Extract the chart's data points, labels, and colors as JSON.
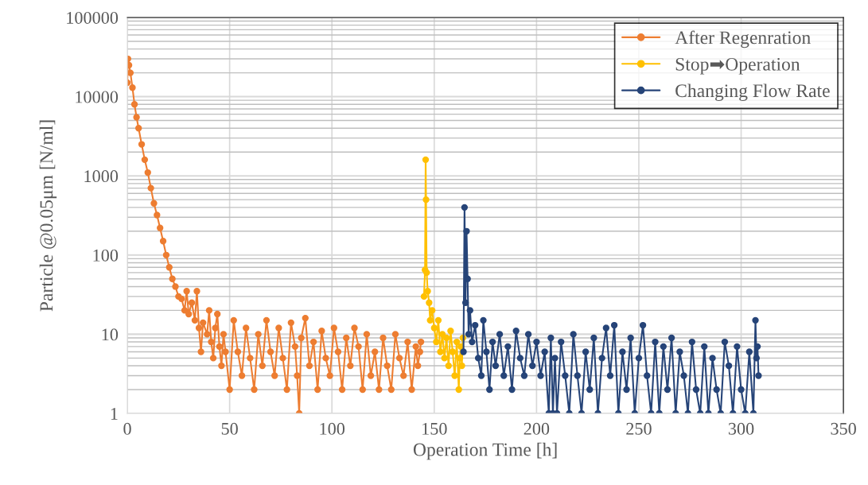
{
  "chart_data": {
    "type": "line",
    "xlabel": "Operation Time [h]",
    "ylabel": "Particle @0.05μm [N/ml]",
    "log": "y",
    "grid": true,
    "legend": "top right",
    "marker": "circle",
    "line_style": "solid",
    "xlim": [
      0,
      350
    ],
    "xticks": [
      0,
      50,
      100,
      150,
      200,
      250,
      300,
      350
    ],
    "ylim": [
      1,
      100000
    ],
    "yticks": [
      1,
      10,
      100,
      1000,
      10000,
      100000
    ],
    "series": [
      {
        "name": "After Regenration",
        "color": "#ed7d31",
        "x": [
          0,
          0.3,
          0.8,
          1.5,
          2.5,
          3.5,
          4.5,
          5.5,
          7,
          8.5,
          10,
          11.5,
          13,
          14.5,
          16,
          17.5,
          19,
          20.5,
          22,
          23.5,
          25,
          26.5,
          28,
          29,
          30,
          31.5,
          33,
          34,
          35,
          36,
          37,
          39,
          40,
          41,
          42,
          43,
          44,
          45,
          46,
          47,
          48,
          50,
          52,
          54,
          56,
          58,
          60,
          62,
          64,
          66,
          68,
          70,
          72,
          74,
          76,
          78,
          80,
          82,
          83,
          84,
          85,
          87,
          89,
          91,
          93,
          95,
          97,
          99,
          101,
          103,
          105,
          107,
          109,
          111,
          113,
          115,
          117,
          119,
          121,
          123,
          125,
          127,
          129,
          131,
          133,
          135,
          137,
          139,
          141,
          142,
          143,
          143.5
        ],
        "values": [
          15000,
          30000,
          25000,
          20000,
          13000,
          8000,
          5500,
          4000,
          2500,
          1600,
          1100,
          700,
          450,
          320,
          220,
          150,
          100,
          70,
          50,
          40,
          30,
          28,
          20,
          35,
          18,
          25,
          15,
          35,
          12,
          6,
          14,
          10,
          20,
          8,
          5,
          12,
          18,
          7,
          4,
          10,
          6,
          2,
          15,
          6,
          3,
          12,
          5,
          2,
          10,
          4,
          15,
          6,
          3,
          12,
          5,
          2,
          14,
          7,
          3,
          1,
          9,
          16,
          4,
          8,
          2,
          11,
          5,
          3,
          12,
          6,
          2,
          9,
          4,
          12,
          7,
          2,
          10,
          3,
          6,
          2,
          9,
          4,
          2,
          10,
          5,
          3,
          8,
          2,
          7,
          4,
          6,
          8
        ]
      },
      {
        "name": "Stop➡Operation",
        "color": "#ffc000",
        "x": [
          145,
          145.5,
          145.8,
          146,
          146.3,
          146.8,
          147.5,
          148,
          149,
          150,
          151,
          152,
          153,
          154,
          155,
          156,
          157,
          158,
          159,
          160,
          161,
          162,
          162.5,
          163,
          163.5,
          164
        ],
        "values": [
          30,
          65,
          1600,
          500,
          60,
          35,
          25,
          15,
          20,
          12,
          8,
          15,
          6,
          10,
          5,
          9,
          4,
          11,
          6,
          3,
          8,
          2,
          5,
          7,
          4,
          9
        ]
      },
      {
        "name": "Changing Flow Rate",
        "color": "#264478",
        "x": [
          164.3,
          164.8,
          165.3,
          165.8,
          166.3,
          166.8,
          167.5,
          168.5,
          170,
          171.5,
          173,
          174,
          175.5,
          177,
          178.5,
          180,
          182,
          184,
          186,
          188,
          190,
          192,
          194,
          196,
          198,
          200,
          202,
          204,
          206,
          207,
          208,
          209,
          210,
          212,
          214,
          216,
          218,
          220,
          222,
          224,
          226,
          228,
          230,
          232,
          234,
          236,
          238,
          240,
          242,
          244,
          246,
          248,
          250,
          252,
          254,
          256,
          258,
          260,
          262,
          264,
          266,
          268,
          270,
          272,
          274,
          276,
          278,
          280,
          282,
          284,
          286,
          288,
          290,
          292,
          294,
          296,
          298,
          300,
          302,
          304,
          306,
          307,
          307.5,
          308,
          308.5
        ],
        "values": [
          6,
          400,
          25,
          200,
          50,
          10,
          20,
          8,
          13,
          5,
          3,
          15,
          6,
          2,
          8,
          4,
          10,
          3,
          7,
          2,
          11,
          5,
          3,
          10,
          4,
          8,
          3,
          6,
          1,
          9,
          1,
          5,
          1,
          8,
          3,
          1,
          10,
          3,
          1,
          6,
          2,
          9,
          1,
          5,
          12,
          3,
          13,
          1,
          6,
          2,
          9,
          1,
          5,
          13,
          3,
          1,
          8,
          1,
          7,
          2,
          9,
          1,
          6,
          3,
          1,
          8,
          2,
          1,
          7,
          1,
          5,
          2,
          1,
          8,
          4,
          1,
          7,
          2,
          1,
          6,
          1,
          15,
          5,
          7,
          3
        ]
      }
    ]
  }
}
